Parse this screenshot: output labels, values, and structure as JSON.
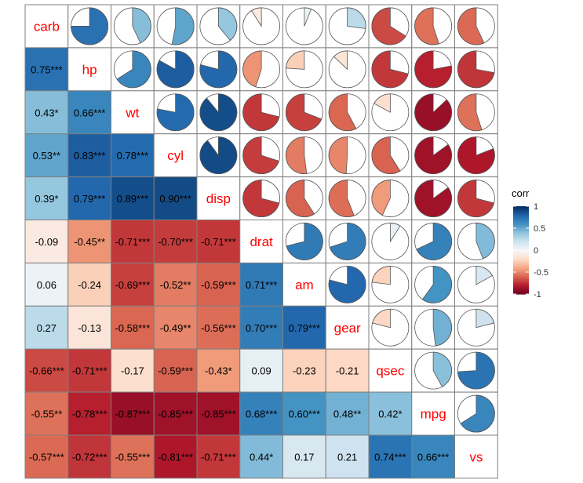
{
  "chart_data": {
    "type": "heatmap",
    "title": "",
    "variables": [
      "carb",
      "hp",
      "wt",
      "cyl",
      "disp",
      "drat",
      "am",
      "gear",
      "qsec",
      "mpg",
      "vs"
    ],
    "diagonal_labels": [
      "carb",
      "hp",
      "wt",
      "cyl",
      "disp",
      "drat",
      "am",
      "gear",
      "qsec",
      "mpg",
      "vs"
    ],
    "lower_triangle": "colored tiles with correlation value and significance stars",
    "upper_triangle": "pie glyphs showing correlation magnitude",
    "correlations": [
      [
        "carb",
        "hp",
        0.75
      ],
      [
        "carb",
        "wt",
        0.43
      ],
      [
        "carb",
        "cyl",
        0.53
      ],
      [
        "carb",
        "disp",
        0.39
      ],
      [
        "carb",
        "drat",
        -0.09
      ],
      [
        "carb",
        "am",
        0.06
      ],
      [
        "carb",
        "gear",
        0.27
      ],
      [
        "carb",
        "qsec",
        -0.66
      ],
      [
        "carb",
        "mpg",
        -0.55
      ],
      [
        "carb",
        "vs",
        -0.57
      ],
      [
        "hp",
        "wt",
        0.66
      ],
      [
        "hp",
        "cyl",
        0.83
      ],
      [
        "hp",
        "disp",
        0.79
      ],
      [
        "hp",
        "drat",
        -0.45
      ],
      [
        "hp",
        "am",
        -0.24
      ],
      [
        "hp",
        "gear",
        -0.13
      ],
      [
        "hp",
        "qsec",
        -0.71
      ],
      [
        "hp",
        "mpg",
        -0.78
      ],
      [
        "hp",
        "vs",
        -0.72
      ],
      [
        "wt",
        "cyl",
        0.78
      ],
      [
        "wt",
        "disp",
        0.89
      ],
      [
        "wt",
        "drat",
        -0.71
      ],
      [
        "wt",
        "am",
        -0.69
      ],
      [
        "wt",
        "gear",
        -0.58
      ],
      [
        "wt",
        "qsec",
        -0.17
      ],
      [
        "wt",
        "mpg",
        -0.87
      ],
      [
        "wt",
        "vs",
        -0.55
      ],
      [
        "cyl",
        "disp",
        0.9
      ],
      [
        "cyl",
        "drat",
        -0.7
      ],
      [
        "cyl",
        "am",
        -0.52
      ],
      [
        "cyl",
        "gear",
        -0.49
      ],
      [
        "cyl",
        "qsec",
        -0.59
      ],
      [
        "cyl",
        "mpg",
        -0.85
      ],
      [
        "cyl",
        "vs",
        -0.81
      ],
      [
        "disp",
        "drat",
        -0.71
      ],
      [
        "disp",
        "am",
        -0.59
      ],
      [
        "disp",
        "gear",
        -0.56
      ],
      [
        "disp",
        "qsec",
        -0.43
      ],
      [
        "disp",
        "mpg",
        -0.85
      ],
      [
        "disp",
        "vs",
        -0.71
      ],
      [
        "drat",
        "am",
        0.71
      ],
      [
        "drat",
        "gear",
        0.7
      ],
      [
        "drat",
        "qsec",
        0.09
      ],
      [
        "drat",
        "mpg",
        0.68
      ],
      [
        "drat",
        "vs",
        0.44
      ],
      [
        "am",
        "gear",
        0.79
      ],
      [
        "am",
        "qsec",
        -0.23
      ],
      [
        "am",
        "mpg",
        0.6
      ],
      [
        "am",
        "vs",
        0.17
      ],
      [
        "gear",
        "qsec",
        -0.21
      ],
      [
        "gear",
        "mpg",
        0.48
      ],
      [
        "gear",
        "vs",
        0.21
      ],
      [
        "qsec",
        "mpg",
        0.42
      ],
      [
        "qsec",
        "vs",
        0.74
      ],
      [
        "mpg",
        "vs",
        0.66
      ]
    ],
    "cell_labels": [
      [
        "carb",
        "hp",
        "0.75***"
      ],
      [
        "carb",
        "wt",
        "0.43*"
      ],
      [
        "carb",
        "cyl",
        "0.53**"
      ],
      [
        "carb",
        "disp",
        "0.39*"
      ],
      [
        "carb",
        "drat",
        "-0.09"
      ],
      [
        "carb",
        "am",
        "0.06"
      ],
      [
        "carb",
        "gear",
        "0.27"
      ],
      [
        "carb",
        "qsec",
        "-0.66***"
      ],
      [
        "carb",
        "mpg",
        "-0.55**"
      ],
      [
        "carb",
        "vs",
        "-0.57***"
      ],
      [
        "hp",
        "wt",
        "0.66***"
      ],
      [
        "hp",
        "cyl",
        "0.83***"
      ],
      [
        "hp",
        "disp",
        "0.79***"
      ],
      [
        "hp",
        "drat",
        "-0.45**"
      ],
      [
        "hp",
        "am",
        "-0.24"
      ],
      [
        "hp",
        "gear",
        "-0.13"
      ],
      [
        "hp",
        "qsec",
        "-0.71***"
      ],
      [
        "hp",
        "mpg",
        "-0.78***"
      ],
      [
        "hp",
        "vs",
        "-0.72***"
      ],
      [
        "wt",
        "cyl",
        "0.78***"
      ],
      [
        "wt",
        "disp",
        "0.89***"
      ],
      [
        "wt",
        "drat",
        "-0.71***"
      ],
      [
        "wt",
        "am",
        "-0.69***"
      ],
      [
        "wt",
        "gear",
        "-0.58***"
      ],
      [
        "wt",
        "qsec",
        "-0.17"
      ],
      [
        "wt",
        "mpg",
        "-0.87***"
      ],
      [
        "wt",
        "vs",
        "-0.55***"
      ],
      [
        "cyl",
        "disp",
        "0.90***"
      ],
      [
        "cyl",
        "drat",
        "-0.70***"
      ],
      [
        "cyl",
        "am",
        "-0.52**"
      ],
      [
        "cyl",
        "gear",
        "-0.49**"
      ],
      [
        "cyl",
        "qsec",
        "-0.59***"
      ],
      [
        "cyl",
        "mpg",
        "-0.85***"
      ],
      [
        "cyl",
        "vs",
        "-0.81***"
      ],
      [
        "disp",
        "drat",
        "-0.71***"
      ],
      [
        "disp",
        "am",
        "-0.59***"
      ],
      [
        "disp",
        "gear",
        "-0.56***"
      ],
      [
        "disp",
        "qsec",
        "-0.43*"
      ],
      [
        "disp",
        "mpg",
        "-0.85***"
      ],
      [
        "disp",
        "vs",
        "-0.71***"
      ],
      [
        "drat",
        "am",
        "0.71***"
      ],
      [
        "drat",
        "gear",
        "0.70***"
      ],
      [
        "drat",
        "qsec",
        "0.09"
      ],
      [
        "drat",
        "mpg",
        "0.68***"
      ],
      [
        "drat",
        "vs",
        "0.44*"
      ],
      [
        "am",
        "gear",
        "0.79***"
      ],
      [
        "am",
        "qsec",
        "-0.23"
      ],
      [
        "am",
        "mpg",
        "0.60***"
      ],
      [
        "am",
        "vs",
        "0.17"
      ],
      [
        "gear",
        "qsec",
        "-0.21"
      ],
      [
        "gear",
        "mpg",
        "0.48**"
      ],
      [
        "gear",
        "vs",
        "0.21"
      ],
      [
        "qsec",
        "mpg",
        "0.42*"
      ],
      [
        "qsec",
        "vs",
        "0.74***"
      ],
      [
        "mpg",
        "vs",
        "0.66***"
      ]
    ],
    "legend": {
      "title": "corr",
      "ticks": [
        "1",
        "0.5",
        "0",
        "-0.5",
        "-1"
      ],
      "tick_values": [
        1,
        0.5,
        0,
        -0.5,
        -1
      ],
      "placement": "right"
    },
    "colors": {
      "positive_strong": "#053061",
      "positive": "#2166ac",
      "positive_light": "#92c5de",
      "neutral": "#f7f7f7",
      "negative_light": "#f4a582",
      "negative": "#b2182b",
      "negative_strong": "#67001f",
      "label_text": "#ff0000",
      "grid": "#7f7f7f"
    },
    "scale": {
      "min": -1,
      "max": 1
    }
  }
}
